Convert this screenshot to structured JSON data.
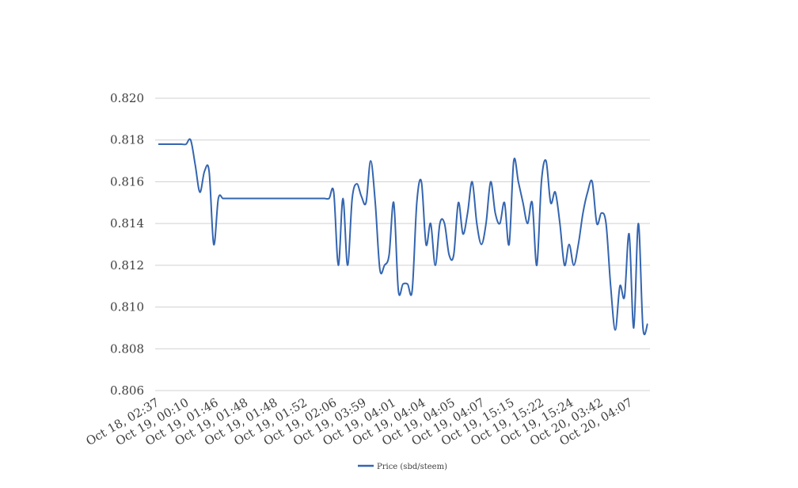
{
  "chart_data": {
    "type": "line",
    "title": "",
    "xlabel": "",
    "ylabel": "",
    "ylim": [
      0.806,
      0.82
    ],
    "yticks": [
      "0.806",
      "0.808",
      "0.810",
      "0.812",
      "0.814",
      "0.816",
      "0.818",
      "0.820"
    ],
    "xticks": [
      "Oct 18, 02:37",
      "Oct 19, 00:10",
      "Oct 19, 01:46",
      "Oct 19, 01:48",
      "Oct 19, 01:48",
      "Oct 19, 01:52",
      "Oct 19, 02:06",
      "Oct 19, 03:59",
      "Oct 19, 04:01",
      "Oct 19, 04:04",
      "Oct 19, 04:05",
      "Oct 19, 04:07",
      "Oct 19, 15:15",
      "Oct 19, 15:22",
      "Oct 19, 15:24",
      "Oct 20, 03:42",
      "Oct 20, 04:07"
    ],
    "grid": true,
    "legend_position": "bottom",
    "line_color": "#3465b0",
    "series": [
      {
        "name": "Price (sbd/steem)",
        "values": [
          0.8178,
          0.8178,
          0.8178,
          0.8178,
          0.8178,
          0.8178,
          0.8178,
          0.818,
          0.8168,
          0.8155,
          0.8165,
          0.8165,
          0.813,
          0.8152,
          0.8152,
          0.8152,
          0.8152,
          0.8152,
          0.8152,
          0.8152,
          0.8152,
          0.8152,
          0.8152,
          0.8152,
          0.8152,
          0.8152,
          0.8152,
          0.8152,
          0.8152,
          0.8152,
          0.8152,
          0.8152,
          0.8152,
          0.8152,
          0.8152,
          0.8152,
          0.8152,
          0.8152,
          0.8155,
          0.812,
          0.8152,
          0.812,
          0.8152,
          0.8159,
          0.8153,
          0.815,
          0.817,
          0.815,
          0.8118,
          0.812,
          0.8125,
          0.815,
          0.8108,
          0.8111,
          0.8111,
          0.8108,
          0.815,
          0.816,
          0.813,
          0.814,
          0.812,
          0.814,
          0.814,
          0.8125,
          0.8125,
          0.815,
          0.8135,
          0.8145,
          0.816,
          0.814,
          0.813,
          0.814,
          0.816,
          0.8145,
          0.814,
          0.815,
          0.813,
          0.817,
          0.816,
          0.815,
          0.814,
          0.815,
          0.812,
          0.816,
          0.817,
          0.815,
          0.8155,
          0.814,
          0.812,
          0.813,
          0.812,
          0.813,
          0.8145,
          0.8155,
          0.816,
          0.814,
          0.8145,
          0.814,
          0.811,
          0.8089,
          0.811,
          0.8105,
          0.8135,
          0.809,
          0.814,
          0.809,
          0.8092
        ]
      }
    ]
  }
}
